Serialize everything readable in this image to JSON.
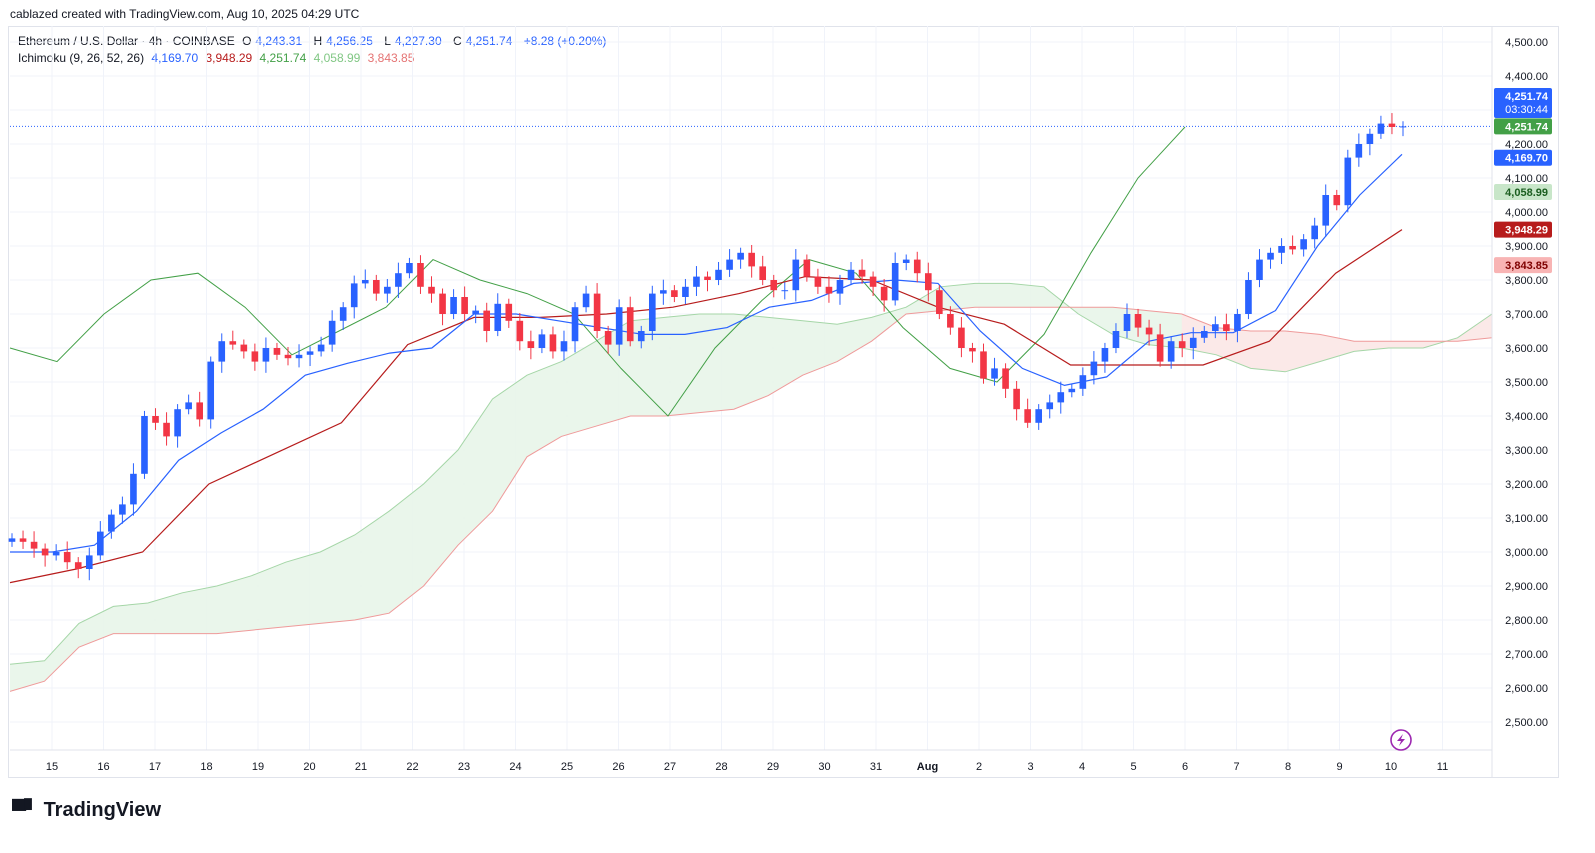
{
  "header": {
    "caption": "cablazed created with TradingView.com, Aug 10, 2025 04:29 UTC"
  },
  "legend": {
    "symbol": "Ethereum / U.S. Dollar · 4h · COINBASE",
    "open_label": "O",
    "open": "4,243.31",
    "high_label": "H",
    "high": "4,256.25",
    "low_label": "L",
    "low": "4,227.30",
    "close_label": "C",
    "close": "4,251.74",
    "change": "+8.28 (+0.20%)",
    "indicator": "Ichimoku (9, 26, 52, 26)",
    "ind_values": [
      "4,169.70",
      "3,948.29",
      "4,251.74",
      "4,058.99",
      "3,843.85"
    ]
  },
  "colors": {
    "up": "#2962ff",
    "down": "#f23645",
    "conversion": "#2962ff",
    "base": "#b71c1c",
    "lagging": "#43a047",
    "span_a": "#a5d6a7",
    "span_b": "#ef9a9a",
    "cloud_up": "#e8f5e9",
    "cloud_down": "#fde8e8",
    "price_line": "#2962ff"
  },
  "badges": {
    "price": "4,251.74",
    "countdown": "03:30:44",
    "lagging": "4,251.74",
    "conversion": "4,169.70",
    "span_a": "4,058.99",
    "base": "3,948.29",
    "span_b": "3,843.85"
  },
  "brand": {
    "name": "TradingView"
  },
  "chart_data": {
    "type": "candlestick",
    "timeframe": "4h",
    "y_axis": {
      "ticks": [
        "2,500.00",
        "2,600.00",
        "2,700.00",
        "2,800.00",
        "2,900.00",
        "3,000.00",
        "3,100.00",
        "3,200.00",
        "3,300.00",
        "3,400.00",
        "3,500.00",
        "3,600.00",
        "3,700.00",
        "3,800.00",
        "3,900.00",
        "4,000.00",
        "4,100.00",
        "4,200.00",
        "4,300.00",
        "4,400.00",
        "4,500.00"
      ],
      "ylim": [
        2440,
        4560
      ]
    },
    "x_axis": {
      "ticks": [
        "15",
        "16",
        "17",
        "18",
        "19",
        "20",
        "21",
        "22",
        "23",
        "24",
        "25",
        "26",
        "27",
        "28",
        "29",
        "30",
        "31",
        "Aug",
        "2",
        "3",
        "4",
        "5",
        "6",
        "7",
        "8",
        "9",
        "10",
        "11"
      ]
    },
    "closes": [
      3040,
      3030,
      3010,
      2990,
      3000,
      2970,
      2950,
      2990,
      3060,
      3110,
      3140,
      3230,
      3400,
      3380,
      3340,
      3420,
      3440,
      3390,
      3560,
      3620,
      3610,
      3590,
      3560,
      3600,
      3580,
      3570,
      3580,
      3590,
      3610,
      3680,
      3720,
      3790,
      3800,
      3760,
      3780,
      3820,
      3850,
      3780,
      3760,
      3700,
      3750,
      3700,
      3710,
      3650,
      3730,
      3680,
      3620,
      3600,
      3640,
      3590,
      3620,
      3720,
      3760,
      3650,
      3610,
      3720,
      3620,
      3650,
      3760,
      3770,
      3750,
      3780,
      3810,
      3800,
      3830,
      3860,
      3880,
      3840,
      3800,
      3770,
      3770,
      3860,
      3810,
      3780,
      3760,
      3800,
      3830,
      3810,
      3780,
      3740,
      3850,
      3860,
      3820,
      3770,
      3700,
      3660,
      3600,
      3590,
      3510,
      3540,
      3480,
      3420,
      3380,
      3420,
      3440,
      3470,
      3480,
      3520,
      3560,
      3600,
      3650,
      3700,
      3660,
      3640,
      3560,
      3620,
      3600,
      3630,
      3650,
      3670,
      3650,
      3700,
      3800,
      3860,
      3880,
      3900,
      3890,
      3920,
      3960,
      4050,
      4020,
      4160,
      4200,
      4230,
      4260,
      4250,
      4251.74
    ],
    "conversion": [
      3000,
      3000,
      3020,
      3120,
      3270,
      3350,
      3420,
      3520,
      3555,
      3585,
      3600,
      3700,
      3700,
      3680,
      3660,
      3640,
      3640,
      3660,
      3720,
      3740,
      3790,
      3800,
      3790,
      3650,
      3540,
      3490,
      3515,
      3620,
      3645,
      3645,
      3710,
      3900,
      4050,
      4169.7
    ],
    "base_line": [
      2910,
      2950,
      3000,
      3200,
      3290,
      3380,
      3610,
      3690,
      3690,
      3700,
      3720,
      3760,
      3810,
      3800,
      3720,
      3670,
      3550,
      3550,
      3550,
      3620,
      3820,
      3948.29
    ],
    "lagging_span": [
      3600,
      3560,
      3700,
      3800,
      3820,
      3720,
      3580,
      3650,
      3720,
      3860,
      3800,
      3760,
      3700,
      3540,
      3400,
      3600,
      3740,
      3860,
      3820,
      3660,
      3540,
      3500,
      3640,
      3880,
      4100,
      4250
    ]
  }
}
